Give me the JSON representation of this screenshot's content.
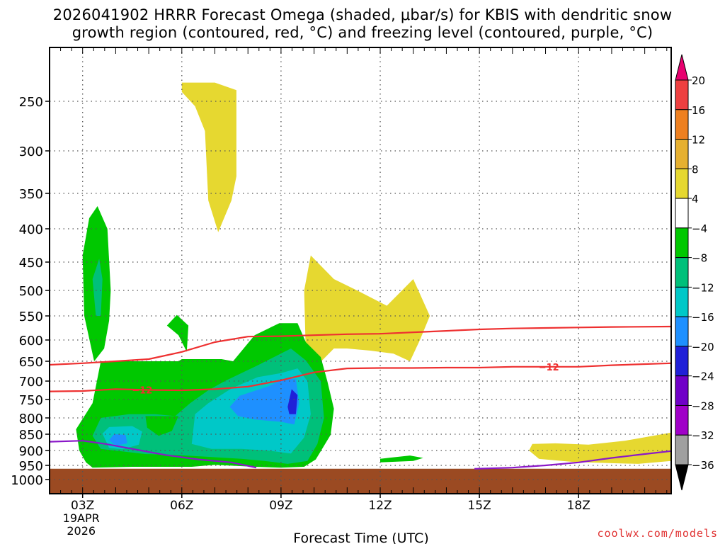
{
  "header": {
    "title_line1": "2026041902 HRRR Forecast Omega (shaded, μbar/s) for KBIS with dendritic snow",
    "title_line2": "growth region (contoured, red, °C) and freezing level (contoured, purple, °C)"
  },
  "footer": {
    "credit": "coolwx.com/models"
  },
  "chart_data": {
    "type": "time-height cross-section",
    "title": "2026041902 HRRR Forecast Omega (shaded, μbar/s) for KBIS with dendritic snow growth region (contoured, red, °C) and freezing level (contoured, purple, °C)",
    "xlabel": "Forecast Time (UTC)",
    "ylabel": "",
    "x_range_hours_utc": [
      2,
      20.8
    ],
    "y_range_hpa": [
      1040,
      200
    ],
    "x_ticks": [
      {
        "hour": 3,
        "label": "03Z",
        "sub": [
          "19APR",
          "2026"
        ]
      },
      {
        "hour": 6,
        "label": "06Z",
        "sub": []
      },
      {
        "hour": 9,
        "label": "09Z",
        "sub": []
      },
      {
        "hour": 12,
        "label": "12Z",
        "sub": []
      },
      {
        "hour": 15,
        "label": "15Z",
        "sub": []
      },
      {
        "hour": 18,
        "label": "18Z",
        "sub": []
      }
    ],
    "y_ticks": [
      250,
      300,
      350,
      400,
      450,
      500,
      550,
      600,
      650,
      700,
      750,
      800,
      850,
      900,
      950,
      1000
    ],
    "colorbar": {
      "levels": [
        "20",
        "16",
        "12",
        "8",
        "4",
        "−4",
        "−8",
        "−12",
        "−16",
        "−20",
        "−24",
        "−28",
        "−32",
        "−36"
      ],
      "colors": [
        "#e8006f",
        "#ee4040",
        "#ee8020",
        "#e6b030",
        "#e6d830",
        "#ffffff",
        "#00c800",
        "#00c07a",
        "#00c8c8",
        "#1e90ff",
        "#2020d8",
        "#7000c8",
        "#a000c8",
        "#a0a0a0",
        "#000000"
      ]
    },
    "omega_regions": [
      {
        "label": "yellow-upper",
        "value_range": "4 to 8",
        "color": "#e6d830",
        "points": [
          [
            6.0,
            230
          ],
          [
            7.0,
            230
          ],
          [
            7.65,
            238
          ],
          [
            7.65,
            330
          ],
          [
            7.5,
            360
          ],
          [
            7.1,
            405
          ],
          [
            6.8,
            360
          ],
          [
            6.7,
            280
          ],
          [
            6.4,
            255
          ],
          [
            6.0,
            240
          ]
        ]
      },
      {
        "label": "yellow-mid",
        "value_range": "4 to 8",
        "color": "#e6d830",
        "points": [
          [
            9.75,
            630
          ],
          [
            9.7,
            500
          ],
          [
            9.9,
            440
          ],
          [
            10.6,
            480
          ],
          [
            11.3,
            500
          ],
          [
            12.2,
            530
          ],
          [
            13.0,
            480
          ],
          [
            13.5,
            550
          ],
          [
            13.2,
            600
          ],
          [
            12.9,
            650
          ],
          [
            12.4,
            632
          ],
          [
            11.7,
            625
          ],
          [
            11.0,
            620
          ],
          [
            10.6,
            620
          ],
          [
            10.1,
            660
          ]
        ]
      },
      {
        "label": "yellow-lower-right",
        "value_range": "4 to 8",
        "color": "#e6d830",
        "points": [
          [
            16.5,
            900
          ],
          [
            16.6,
            880
          ],
          [
            17.3,
            878
          ],
          [
            18.3,
            882
          ],
          [
            19.4,
            870
          ],
          [
            20.8,
            845
          ],
          [
            20.8,
            935
          ],
          [
            19.8,
            945
          ],
          [
            18.8,
            942
          ],
          [
            17.8,
            938
          ],
          [
            16.8,
            928
          ]
        ]
      },
      {
        "label": "green-tower",
        "value_range": "-8 to -4",
        "color": "#00c800",
        "points": [
          [
            3.35,
            650
          ],
          [
            3.05,
            550
          ],
          [
            3.0,
            440
          ],
          [
            3.2,
            385
          ],
          [
            3.45,
            368
          ],
          [
            3.75,
            400
          ],
          [
            3.85,
            500
          ],
          [
            3.8,
            560
          ],
          [
            3.65,
            620
          ]
        ]
      },
      {
        "label": "green-blob-small",
        "value_range": "-8 to -4",
        "color": "#00c800",
        "points": [
          [
            5.55,
            570
          ],
          [
            5.85,
            548
          ],
          [
            6.2,
            570
          ],
          [
            6.15,
            628
          ],
          [
            5.9,
            590
          ]
        ]
      },
      {
        "label": "green-main",
        "value_range": "-8 to -4",
        "color": "#00c800",
        "points": [
          [
            2.9,
            900
          ],
          [
            2.8,
            835
          ],
          [
            3.3,
            760
          ],
          [
            3.55,
            650
          ],
          [
            5.9,
            650
          ],
          [
            6.0,
            645
          ],
          [
            7.2,
            645
          ],
          [
            7.55,
            650
          ],
          [
            8.2,
            590
          ],
          [
            8.95,
            565
          ],
          [
            9.5,
            565
          ],
          [
            9.75,
            605
          ],
          [
            10.2,
            640
          ],
          [
            10.4,
            700
          ],
          [
            10.6,
            775
          ],
          [
            10.5,
            852
          ],
          [
            10.05,
            930
          ],
          [
            9.7,
            955
          ],
          [
            9.0,
            958
          ],
          [
            8.2,
            955
          ],
          [
            7.0,
            948
          ],
          [
            6.3,
            955
          ],
          [
            5.3,
            955
          ],
          [
            4.5,
            955
          ],
          [
            3.3,
            958
          ],
          [
            3.1,
            940
          ]
        ]
      },
      {
        "label": "green-east-small",
        "value_range": "-8 to -4",
        "color": "#00c800",
        "points": [
          [
            12.0,
            928
          ],
          [
            12.3,
            924
          ],
          [
            12.9,
            917
          ],
          [
            13.3,
            925
          ],
          [
            13.0,
            935
          ],
          [
            12.0,
            940
          ]
        ]
      },
      {
        "label": "teal-tower",
        "value_range": "-12 to -8",
        "color": "#00c07a",
        "points": [
          [
            3.4,
            550
          ],
          [
            3.3,
            480
          ],
          [
            3.5,
            445
          ],
          [
            3.6,
            480
          ],
          [
            3.55,
            550
          ]
        ]
      },
      {
        "label": "teal-main",
        "value_range": "-12 to -8",
        "color": "#00c07a",
        "points": [
          [
            3.3,
            855
          ],
          [
            3.55,
            800
          ],
          [
            4.4,
            790
          ],
          [
            5.2,
            790
          ],
          [
            5.8,
            795
          ],
          [
            6.25,
            760
          ],
          [
            6.8,
            725
          ],
          [
            7.3,
            700
          ],
          [
            8.3,
            660
          ],
          [
            9.3,
            620
          ],
          [
            9.75,
            648
          ],
          [
            10.2,
            700
          ],
          [
            10.3,
            800
          ],
          [
            10.1,
            880
          ],
          [
            9.8,
            935
          ],
          [
            9.2,
            945
          ],
          [
            8.5,
            935
          ],
          [
            7.8,
            928
          ],
          [
            6.6,
            920
          ],
          [
            5.8,
            915
          ],
          [
            4.9,
            912
          ],
          [
            4.1,
            902
          ],
          [
            3.55,
            895
          ]
        ]
      },
      {
        "label": "teal-notch",
        "value_range": "-8 to -4",
        "color": "#00c800",
        "points": [
          [
            4.9,
            795
          ],
          [
            5.9,
            795
          ],
          [
            5.7,
            840
          ],
          [
            5.3,
            855
          ],
          [
            4.95,
            830
          ]
        ]
      },
      {
        "label": "cyan-main",
        "value_range": "-16 to -12",
        "color": "#00c8c8",
        "points": [
          [
            3.6,
            848
          ],
          [
            3.8,
            828
          ],
          [
            4.5,
            825
          ],
          [
            4.8,
            842
          ],
          [
            4.7,
            882
          ],
          [
            4.2,
            896
          ],
          [
            3.8,
            892
          ]
        ]
      },
      {
        "label": "cyan-main-2",
        "value_range": "-16 to -12",
        "color": "#00c8c8",
        "points": [
          [
            6.3,
            880
          ],
          [
            6.4,
            790
          ],
          [
            6.8,
            760
          ],
          [
            7.5,
            720
          ],
          [
            8.3,
            690
          ],
          [
            9.0,
            680
          ],
          [
            9.5,
            668
          ],
          [
            9.8,
            700
          ],
          [
            9.9,
            790
          ],
          [
            9.7,
            860
          ],
          [
            9.3,
            910
          ],
          [
            8.6,
            900
          ],
          [
            7.8,
            895
          ],
          [
            6.9,
            895
          ]
        ]
      },
      {
        "label": "blue-small",
        "value_range": "-20 to -16",
        "color": "#1e90ff",
        "points": [
          [
            3.8,
            868
          ],
          [
            3.95,
            850
          ],
          [
            4.3,
            852
          ],
          [
            4.35,
            878
          ],
          [
            4.0,
            885
          ]
        ]
      },
      {
        "label": "blue-main",
        "value_range": "-20 to -16",
        "color": "#1e90ff",
        "points": [
          [
            7.45,
            770
          ],
          [
            7.75,
            740
          ],
          [
            8.6,
            715
          ],
          [
            9.15,
            692
          ],
          [
            9.45,
            695
          ],
          [
            9.55,
            760
          ],
          [
            9.4,
            820
          ],
          [
            9.0,
            812
          ],
          [
            8.2,
            805
          ],
          [
            7.7,
            795
          ]
        ]
      },
      {
        "label": "navy-core",
        "value_range": "-24 to -20",
        "color": "#2020d8",
        "points": [
          [
            9.2,
            770
          ],
          [
            9.32,
            722
          ],
          [
            9.5,
            738
          ],
          [
            9.45,
            790
          ],
          [
            9.25,
            790
          ]
        ]
      },
      {
        "label": "terrain",
        "value_range": "below ground",
        "color": "#9b4a22",
        "points": [
          [
            2,
            962
          ],
          [
            20.8,
            962
          ],
          [
            20.8,
            1040
          ],
          [
            2,
            1040
          ]
        ]
      }
    ],
    "contours": [
      {
        "label": "",
        "color": "#ee3030",
        "description": "upper red dendritic contour",
        "points": [
          [
            2,
            659
          ],
          [
            3.0,
            655
          ],
          [
            4.0,
            650
          ],
          [
            5.0,
            645
          ],
          [
            6.0,
            628
          ],
          [
            7.0,
            605
          ],
          [
            8.0,
            593
          ],
          [
            9.0,
            592
          ],
          [
            10.0,
            590
          ],
          [
            11.0,
            588
          ],
          [
            12.0,
            587
          ],
          [
            13.0,
            584
          ],
          [
            14.0,
            581
          ],
          [
            15.0,
            578
          ],
          [
            16.0,
            576
          ],
          [
            17.0,
            575
          ],
          [
            18.0,
            574
          ],
          [
            19.0,
            573
          ],
          [
            20.8,
            572
          ]
        ]
      },
      {
        "label": "−12",
        "color": "#ee3030",
        "description": "lower red dendritic contour (-12 °C)",
        "points": [
          [
            2,
            728
          ],
          [
            3.0,
            727
          ],
          [
            4.0,
            722
          ],
          [
            5.0,
            724
          ],
          [
            6.0,
            725
          ],
          [
            7.0,
            722
          ],
          [
            8.0,
            715
          ],
          [
            9.0,
            698
          ],
          [
            10.0,
            678
          ],
          [
            11.0,
            668
          ],
          [
            12.0,
            667
          ],
          [
            13.0,
            667
          ],
          [
            14.0,
            666
          ],
          [
            15.0,
            666
          ],
          [
            16.0,
            664
          ],
          [
            17.0,
            664
          ],
          [
            18.0,
            664
          ],
          [
            19.0,
            660
          ],
          [
            20.8,
            655
          ]
        ],
        "labels_at_hour": [
          4.8,
          17.1
        ]
      },
      {
        "label": "",
        "color": "#8a18c8",
        "description": "freezing level west",
        "points": [
          [
            2,
            873
          ],
          [
            3.0,
            870
          ],
          [
            3.7,
            880
          ],
          [
            4.5,
            895
          ],
          [
            5.5,
            915
          ],
          [
            6.5,
            930
          ],
          [
            7.5,
            940
          ],
          [
            8.25,
            958
          ]
        ]
      },
      {
        "label": "",
        "color": "#8a18c8",
        "description": "freezing level east",
        "points": [
          [
            14.85,
            962
          ],
          [
            16.0,
            958
          ],
          [
            17.0,
            950
          ],
          [
            18.0,
            940
          ],
          [
            19.0,
            925
          ],
          [
            20.0,
            912
          ],
          [
            20.8,
            902
          ]
        ]
      }
    ]
  }
}
